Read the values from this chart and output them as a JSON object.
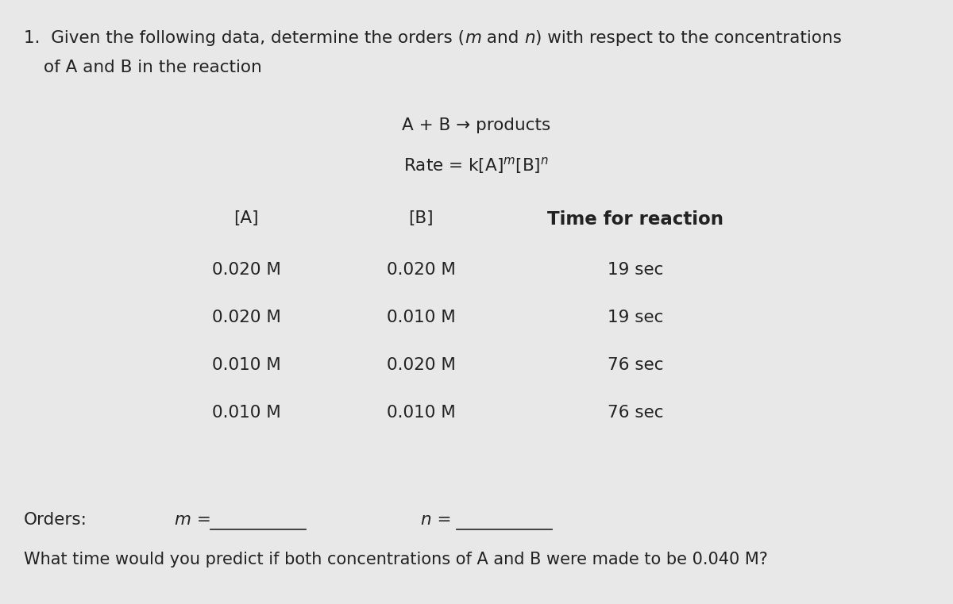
{
  "background_color": "#e8e8e8",
  "reaction_eq": "A + B → products",
  "rate_eq": "Rate = k[A]’’’[B]”",
  "col_headers": [
    "[A]",
    "[B]",
    "Time for reaction"
  ],
  "col_A": [
    "0.020 M",
    "0.020 M",
    "0.010 M",
    "0.010 M"
  ],
  "col_B": [
    "0.020 M",
    "0.010 M",
    "0.020 M",
    "0.010 M"
  ],
  "col_time": [
    "19 sec",
    "19 sec",
    "76 sec",
    "76 sec"
  ],
  "orders_label": "Orders:",
  "bottom_question": "What time would you predict if both concentrations of A and B were made to be 0.040 M?",
  "font_size": 15.5,
  "text_color": "#222222",
  "line_color": "#333333"
}
